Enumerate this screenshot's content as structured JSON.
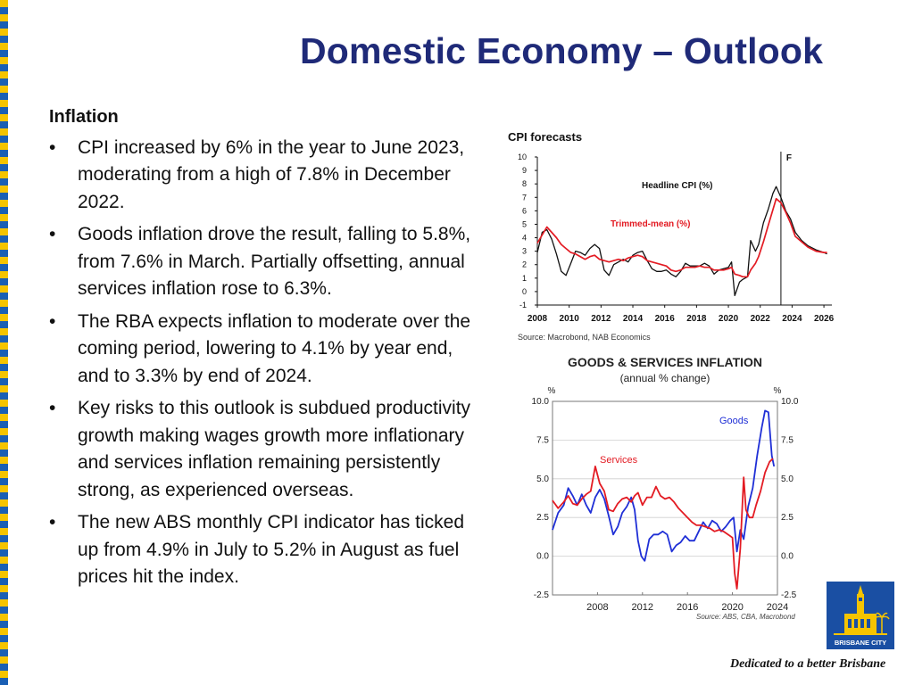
{
  "slide": {
    "title": "Domestic Economy – Outlook",
    "section_heading": "Inflation",
    "bullets": [
      "CPI increased by 6% in the year to June 2023, moderating from a high of 7.8% in December 2022.",
      "Goods inflation drove the result, falling to 5.8%, from 7.6% in March. Partially offsetting, annual services inflation rose to 6.3%.",
      "The RBA expects inflation to moderate over the coming period, lowering to 4.1% by year end, and to 3.3% by end of 2024.",
      "Key risks to this outlook is subdued productivity growth making wages growth more inflationary and services inflation remaining persistently strong, as experienced overseas.",
      "The new ABS monthly CPI indicator has ticked up from 4.9% in July to 5.2% in August as fuel prices hit the index."
    ],
    "bullet_glyph": "•",
    "tagline": "Dedicated to a better Brisbane",
    "logo_text": "BRISBANE CITY"
  },
  "colors": {
    "title": "#1f2a78",
    "stripe_yellow": "#f5c400",
    "stripe_blue": "#1a5fb4",
    "red": "#e31b23",
    "blue": "#1f2fd6",
    "black": "#111111"
  },
  "chart_data": [
    {
      "type": "line",
      "title": "CPI forecasts",
      "source": "Source: Macrobond, NAB Economics",
      "forecast_marker": "F",
      "forecast_x": 2023.3,
      "xlim": [
        2008,
        2026.5
      ],
      "ylim": [
        -1,
        10
      ],
      "x_ticks": [
        "2008",
        "2010",
        "2012",
        "2014",
        "2016",
        "2018",
        "2020",
        "2022",
        "2024",
        "2026"
      ],
      "y_ticks": [
        "10",
        "9",
        "8",
        "7",
        "6",
        "5",
        "4",
        "3",
        "2",
        "1",
        "0",
        "-1"
      ],
      "series": [
        {
          "name": "Headline CPI (%)",
          "color": "#111111",
          "points": [
            [
              2008,
              2.9
            ],
            [
              2008.3,
              4.4
            ],
            [
              2008.6,
              4.6
            ],
            [
              2008.9,
              3.9
            ],
            [
              2009.2,
              2.8
            ],
            [
              2009.5,
              1.5
            ],
            [
              2009.8,
              1.2
            ],
            [
              2010.1,
              2.1
            ],
            [
              2010.4,
              3.0
            ],
            [
              2010.7,
              2.9
            ],
            [
              2011.0,
              2.7
            ],
            [
              2011.3,
              3.2
            ],
            [
              2011.6,
              3.5
            ],
            [
              2011.9,
              3.2
            ],
            [
              2012.2,
              1.6
            ],
            [
              2012.5,
              1.2
            ],
            [
              2012.8,
              2.0
            ],
            [
              2013.1,
              2.2
            ],
            [
              2013.4,
              2.4
            ],
            [
              2013.7,
              2.2
            ],
            [
              2014.0,
              2.7
            ],
            [
              2014.3,
              2.9
            ],
            [
              2014.6,
              3.0
            ],
            [
              2014.9,
              2.3
            ],
            [
              2015.2,
              1.7
            ],
            [
              2015.5,
              1.5
            ],
            [
              2015.8,
              1.5
            ],
            [
              2016.1,
              1.6
            ],
            [
              2016.4,
              1.3
            ],
            [
              2016.7,
              1.1
            ],
            [
              2017.0,
              1.5
            ],
            [
              2017.3,
              2.1
            ],
            [
              2017.6,
              1.9
            ],
            [
              2017.9,
              1.9
            ],
            [
              2018.2,
              1.9
            ],
            [
              2018.5,
              2.1
            ],
            [
              2018.8,
              1.9
            ],
            [
              2019.1,
              1.3
            ],
            [
              2019.4,
              1.6
            ],
            [
              2019.7,
              1.7
            ],
            [
              2020.0,
              1.8
            ],
            [
              2020.2,
              2.2
            ],
            [
              2020.4,
              -0.3
            ],
            [
              2020.7,
              0.7
            ],
            [
              2020.9,
              0.9
            ],
            [
              2021.2,
              1.1
            ],
            [
              2021.4,
              3.8
            ],
            [
              2021.7,
              3.0
            ],
            [
              2021.9,
              3.5
            ],
            [
              2022.2,
              5.1
            ],
            [
              2022.5,
              6.1
            ],
            [
              2022.8,
              7.3
            ],
            [
              2023.0,
              7.8
            ],
            [
              2023.3,
              7.0
            ],
            [
              2023.6,
              6.0
            ],
            [
              2023.9,
              5.4
            ],
            [
              2024.2,
              4.4
            ],
            [
              2024.6,
              3.8
            ],
            [
              2025.0,
              3.4
            ],
            [
              2025.5,
              3.1
            ],
            [
              2026.0,
              2.9
            ],
            [
              2026.2,
              2.8
            ]
          ]
        },
        {
          "name": "Trimmed-mean (%)",
          "color": "#e31b23",
          "points": [
            [
              2008,
              3.6
            ],
            [
              2008.3,
              4.2
            ],
            [
              2008.6,
              4.8
            ],
            [
              2008.9,
              4.4
            ],
            [
              2009.2,
              4.0
            ],
            [
              2009.5,
              3.5
            ],
            [
              2009.8,
              3.2
            ],
            [
              2010.1,
              2.9
            ],
            [
              2010.4,
              2.8
            ],
            [
              2010.7,
              2.6
            ],
            [
              2011.0,
              2.4
            ],
            [
              2011.3,
              2.6
            ],
            [
              2011.6,
              2.7
            ],
            [
              2011.9,
              2.4
            ],
            [
              2012.2,
              2.3
            ],
            [
              2012.5,
              2.2
            ],
            [
              2012.8,
              2.3
            ],
            [
              2013.1,
              2.4
            ],
            [
              2013.4,
              2.3
            ],
            [
              2013.7,
              2.5
            ],
            [
              2014.0,
              2.6
            ],
            [
              2014.3,
              2.7
            ],
            [
              2014.6,
              2.6
            ],
            [
              2014.9,
              2.3
            ],
            [
              2015.2,
              2.2
            ],
            [
              2015.5,
              2.1
            ],
            [
              2015.8,
              2.0
            ],
            [
              2016.1,
              1.9
            ],
            [
              2016.4,
              1.6
            ],
            [
              2016.7,
              1.5
            ],
            [
              2017.0,
              1.6
            ],
            [
              2017.3,
              1.8
            ],
            [
              2017.6,
              1.8
            ],
            [
              2017.9,
              1.8
            ],
            [
              2018.2,
              1.9
            ],
            [
              2018.5,
              1.8
            ],
            [
              2018.8,
              1.8
            ],
            [
              2019.1,
              1.6
            ],
            [
              2019.4,
              1.6
            ],
            [
              2019.7,
              1.6
            ],
            [
              2020.0,
              1.7
            ],
            [
              2020.2,
              1.8
            ],
            [
              2020.4,
              1.3
            ],
            [
              2020.7,
              1.2
            ],
            [
              2020.9,
              1.1
            ],
            [
              2021.2,
              1.1
            ],
            [
              2021.4,
              1.6
            ],
            [
              2021.7,
              2.1
            ],
            [
              2021.9,
              2.6
            ],
            [
              2022.2,
              3.7
            ],
            [
              2022.5,
              4.9
            ],
            [
              2022.8,
              6.1
            ],
            [
              2023.0,
              6.9
            ],
            [
              2023.3,
              6.6
            ],
            [
              2023.6,
              5.9
            ],
            [
              2023.9,
              5.1
            ],
            [
              2024.2,
              4.1
            ],
            [
              2024.6,
              3.7
            ],
            [
              2025.0,
              3.3
            ],
            [
              2025.5,
              3.0
            ],
            [
              2026.0,
              2.9
            ],
            [
              2026.2,
              2.9
            ]
          ]
        }
      ]
    },
    {
      "type": "line",
      "title": "GOODS & SERVICES INFLATION",
      "subtitle": "(annual % change)",
      "source": "Source: ABS, CBA, Macrobond",
      "axis_unit": "%",
      "xlim": [
        2004,
        2024
      ],
      "ylim": [
        -2.5,
        10.0
      ],
      "x_ticks": [
        "2008",
        "2012",
        "2016",
        "2020",
        "2024"
      ],
      "y_ticks": [
        "10.0",
        "7.5",
        "5.0",
        "2.5",
        "0.0",
        "-2.5"
      ],
      "series": [
        {
          "name": "Goods",
          "color": "#1f2fd6",
          "points": [
            [
              2004,
              1.7
            ],
            [
              2004.5,
              2.8
            ],
            [
              2005,
              3.3
            ],
            [
              2005.4,
              4.4
            ],
            [
              2005.8,
              3.9
            ],
            [
              2006.2,
              3.3
            ],
            [
              2006.6,
              4.0
            ],
            [
              2007,
              3.3
            ],
            [
              2007.4,
              2.8
            ],
            [
              2007.8,
              3.8
            ],
            [
              2008.2,
              4.3
            ],
            [
              2008.6,
              3.7
            ],
            [
              2009,
              2.6
            ],
            [
              2009.4,
              1.4
            ],
            [
              2009.8,
              1.9
            ],
            [
              2010.2,
              2.8
            ],
            [
              2010.6,
              3.2
            ],
            [
              2011,
              3.8
            ],
            [
              2011.3,
              3.0
            ],
            [
              2011.6,
              1.0
            ],
            [
              2011.9,
              0.0
            ],
            [
              2012.2,
              -0.3
            ],
            [
              2012.6,
              1.1
            ],
            [
              2013,
              1.4
            ],
            [
              2013.4,
              1.4
            ],
            [
              2013.8,
              1.6
            ],
            [
              2014.2,
              1.4
            ],
            [
              2014.6,
              0.3
            ],
            [
              2015,
              0.7
            ],
            [
              2015.4,
              0.9
            ],
            [
              2015.8,
              1.3
            ],
            [
              2016.2,
              1.0
            ],
            [
              2016.6,
              1.0
            ],
            [
              2017,
              1.6
            ],
            [
              2017.4,
              2.2
            ],
            [
              2017.8,
              1.8
            ],
            [
              2018.2,
              2.3
            ],
            [
              2018.6,
              2.1
            ],
            [
              2019,
              1.6
            ],
            [
              2019.4,
              1.9
            ],
            [
              2019.8,
              2.3
            ],
            [
              2020.1,
              2.5
            ],
            [
              2020.4,
              0.3
            ],
            [
              2020.7,
              1.7
            ],
            [
              2021,
              1.1
            ],
            [
              2021.4,
              3.2
            ],
            [
              2021.8,
              4.4
            ],
            [
              2022.2,
              6.5
            ],
            [
              2022.6,
              8.3
            ],
            [
              2022.9,
              9.4
            ],
            [
              2023.2,
              9.3
            ],
            [
              2023.5,
              6.5
            ],
            [
              2023.7,
              5.8
            ]
          ]
        },
        {
          "name": "Services",
          "color": "#e31b23",
          "points": [
            [
              2004,
              3.6
            ],
            [
              2004.5,
              3.1
            ],
            [
              2005,
              3.5
            ],
            [
              2005.4,
              3.9
            ],
            [
              2005.8,
              3.4
            ],
            [
              2006.2,
              3.3
            ],
            [
              2006.6,
              3.7
            ],
            [
              2007,
              4.0
            ],
            [
              2007.4,
              4.2
            ],
            [
              2007.8,
              5.8
            ],
            [
              2008.2,
              4.7
            ],
            [
              2008.6,
              4.2
            ],
            [
              2009,
              3.0
            ],
            [
              2009.4,
              2.9
            ],
            [
              2009.8,
              3.4
            ],
            [
              2010.2,
              3.7
            ],
            [
              2010.6,
              3.8
            ],
            [
              2011,
              3.5
            ],
            [
              2011.3,
              3.9
            ],
            [
              2011.6,
              4.1
            ],
            [
              2012,
              3.3
            ],
            [
              2012.4,
              3.8
            ],
            [
              2012.8,
              3.8
            ],
            [
              2013.2,
              4.5
            ],
            [
              2013.6,
              3.9
            ],
            [
              2014,
              3.7
            ],
            [
              2014.4,
              3.8
            ],
            [
              2014.8,
              3.5
            ],
            [
              2015.2,
              3.1
            ],
            [
              2015.6,
              2.8
            ],
            [
              2016,
              2.5
            ],
            [
              2016.4,
              2.2
            ],
            [
              2016.8,
              2.0
            ],
            [
              2017.2,
              2.0
            ],
            [
              2017.6,
              1.9
            ],
            [
              2018,
              1.8
            ],
            [
              2018.4,
              1.6
            ],
            [
              2018.8,
              1.7
            ],
            [
              2019.2,
              1.6
            ],
            [
              2019.6,
              1.4
            ],
            [
              2020,
              1.2
            ],
            [
              2020.2,
              -1.1
            ],
            [
              2020.4,
              -2.1
            ],
            [
              2020.7,
              0.5
            ],
            [
              2021,
              5.1
            ],
            [
              2021.2,
              3.0
            ],
            [
              2021.5,
              2.5
            ],
            [
              2021.8,
              2.5
            ],
            [
              2022.1,
              3.3
            ],
            [
              2022.5,
              4.2
            ],
            [
              2022.9,
              5.4
            ],
            [
              2023.3,
              6.1
            ],
            [
              2023.6,
              6.3
            ]
          ]
        }
      ]
    }
  ]
}
